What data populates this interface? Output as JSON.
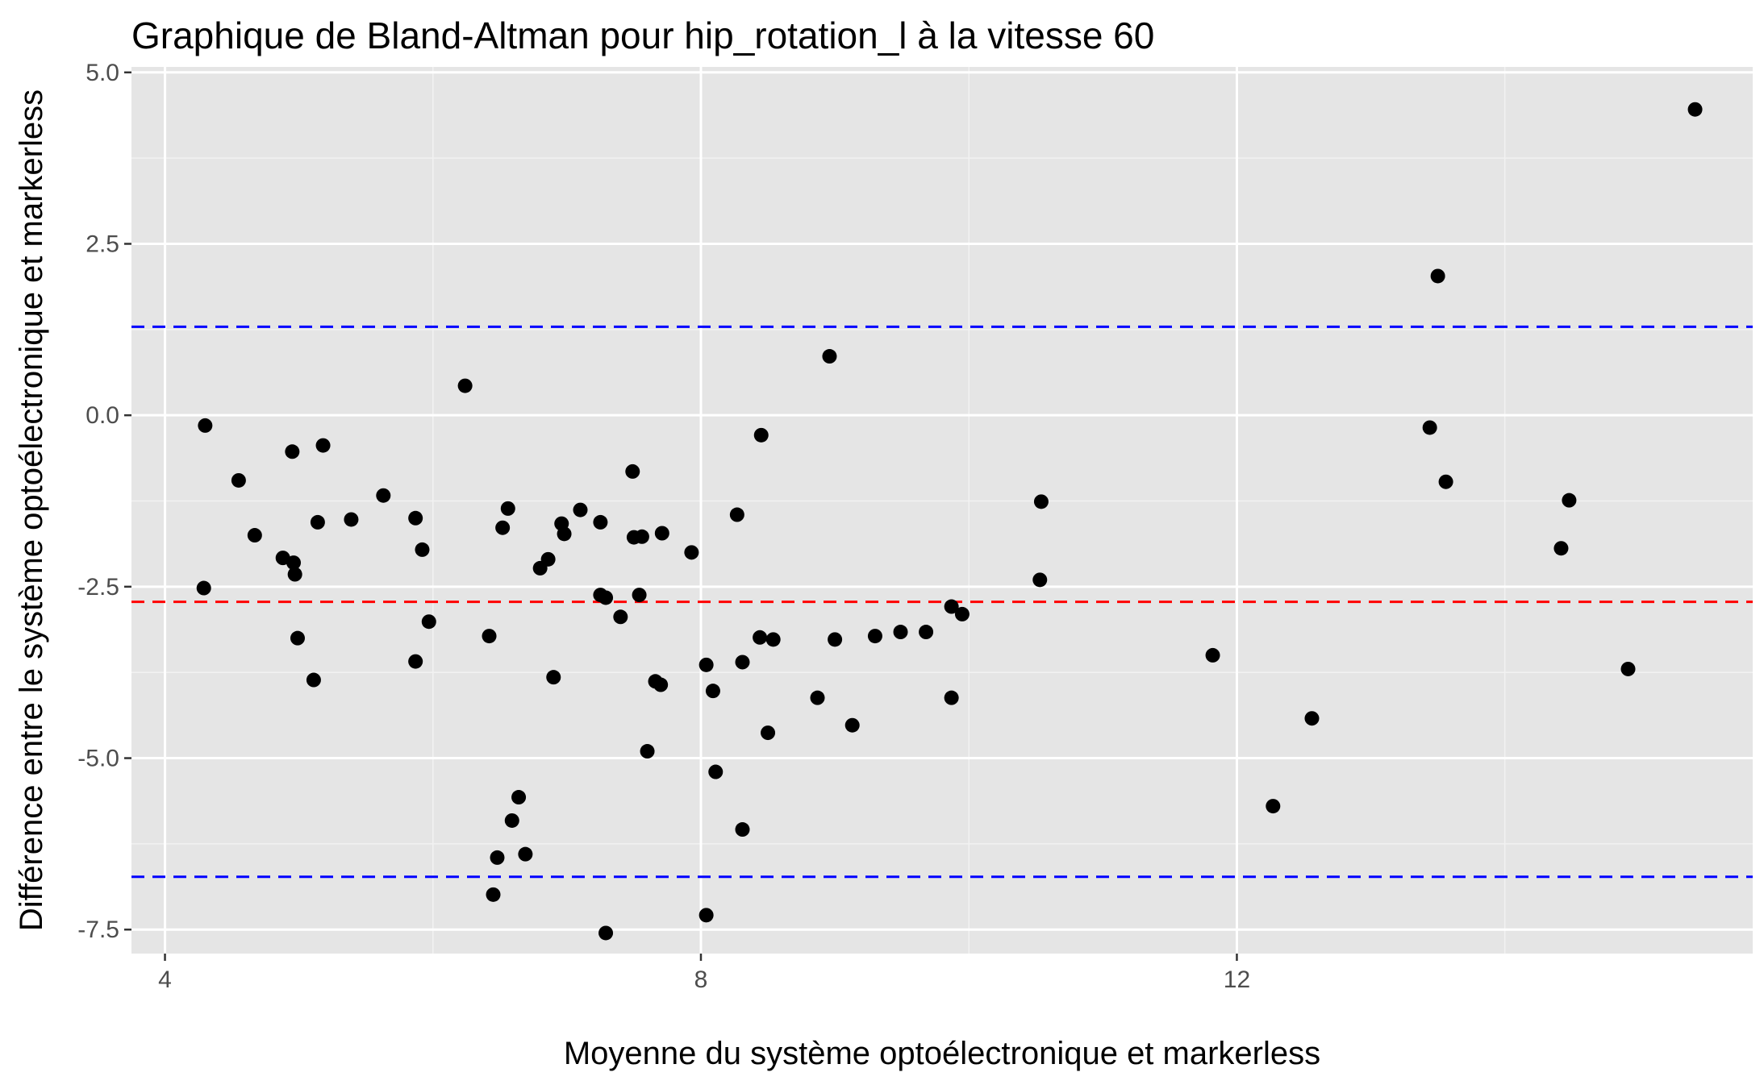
{
  "chart_data": {
    "type": "scatter",
    "title": "Graphique de Bland-Altman pour hip_rotation_l à la vitesse 60",
    "xlabel": "Moyenne du système optoélectronique et markerless",
    "ylabel": "Différence entre le système optoélectronique et markerless",
    "xlim": [
      3.75,
      15.85
    ],
    "ylim": [
      -7.85,
      5.08
    ],
    "x_ticks": [
      4,
      8,
      12
    ],
    "x_tick_labels": [
      "4",
      "8",
      "12"
    ],
    "y_ticks": [
      5.0,
      2.5,
      0.0,
      -2.5,
      -5.0,
      -7.5
    ],
    "y_tick_labels": [
      "5.0",
      "2.5",
      "0.0",
      "-2.5",
      "-5.0",
      "-7.5"
    ],
    "grid": true,
    "reference_lines": [
      {
        "y": -2.72,
        "color": "#ff0000",
        "style": "dashed"
      },
      {
        "y": 1.29,
        "color": "#0000ff",
        "style": "dashed"
      },
      {
        "y": -6.73,
        "color": "#0000ff",
        "style": "dashed"
      }
    ],
    "points": [
      {
        "x": 4.3,
        "y": -0.15
      },
      {
        "x": 4.29,
        "y": -2.52
      },
      {
        "x": 4.55,
        "y": -0.95
      },
      {
        "x": 4.67,
        "y": -1.75
      },
      {
        "x": 4.88,
        "y": -2.08
      },
      {
        "x": 4.95,
        "y": -0.53
      },
      {
        "x": 4.96,
        "y": -2.15
      },
      {
        "x": 4.97,
        "y": -2.32
      },
      {
        "x": 4.99,
        "y": -3.25
      },
      {
        "x": 5.11,
        "y": -3.86
      },
      {
        "x": 5.14,
        "y": -1.56
      },
      {
        "x": 5.18,
        "y": -0.44
      },
      {
        "x": 5.39,
        "y": -1.52
      },
      {
        "x": 5.63,
        "y": -1.17
      },
      {
        "x": 5.87,
        "y": -3.59
      },
      {
        "x": 5.87,
        "y": -1.5
      },
      {
        "x": 5.92,
        "y": -1.96
      },
      {
        "x": 5.97,
        "y": -3.01
      },
      {
        "x": 6.24,
        "y": 0.43
      },
      {
        "x": 6.42,
        "y": -3.22
      },
      {
        "x": 6.45,
        "y": -6.99
      },
      {
        "x": 6.48,
        "y": -6.45
      },
      {
        "x": 6.52,
        "y": -1.64
      },
      {
        "x": 6.56,
        "y": -1.36
      },
      {
        "x": 6.59,
        "y": -5.91
      },
      {
        "x": 6.64,
        "y": -5.57
      },
      {
        "x": 6.69,
        "y": -6.4
      },
      {
        "x": 6.8,
        "y": -2.23
      },
      {
        "x": 6.86,
        "y": -2.1
      },
      {
        "x": 6.9,
        "y": -3.82
      },
      {
        "x": 6.96,
        "y": -1.58
      },
      {
        "x": 6.98,
        "y": -1.73
      },
      {
        "x": 7.1,
        "y": -1.38
      },
      {
        "x": 7.25,
        "y": -1.56
      },
      {
        "x": 7.25,
        "y": -2.62
      },
      {
        "x": 7.29,
        "y": -2.66
      },
      {
        "x": 7.29,
        "y": -7.55
      },
      {
        "x": 7.4,
        "y": -2.94
      },
      {
        "x": 7.49,
        "y": -0.82
      },
      {
        "x": 7.5,
        "y": -1.78
      },
      {
        "x": 7.54,
        "y": -2.62
      },
      {
        "x": 7.56,
        "y": -1.77
      },
      {
        "x": 7.6,
        "y": -4.9
      },
      {
        "x": 7.66,
        "y": -3.88
      },
      {
        "x": 7.7,
        "y": -3.93
      },
      {
        "x": 7.71,
        "y": -1.72
      },
      {
        "x": 7.93,
        "y": -2.0
      },
      {
        "x": 8.04,
        "y": -3.64
      },
      {
        "x": 8.04,
        "y": -7.29
      },
      {
        "x": 8.09,
        "y": -4.02
      },
      {
        "x": 8.11,
        "y": -5.2
      },
      {
        "x": 8.27,
        "y": -1.45
      },
      {
        "x": 8.31,
        "y": -3.6
      },
      {
        "x": 8.31,
        "y": -6.04
      },
      {
        "x": 8.44,
        "y": -3.24
      },
      {
        "x": 8.45,
        "y": -0.29
      },
      {
        "x": 8.5,
        "y": -4.63
      },
      {
        "x": 8.54,
        "y": -3.27
      },
      {
        "x": 8.87,
        "y": -4.12
      },
      {
        "x": 8.96,
        "y": 0.86
      },
      {
        "x": 9.0,
        "y": -3.27
      },
      {
        "x": 9.13,
        "y": -4.52
      },
      {
        "x": 9.3,
        "y": -3.22
      },
      {
        "x": 9.49,
        "y": -3.16
      },
      {
        "x": 9.68,
        "y": -3.16
      },
      {
        "x": 9.87,
        "y": -2.79
      },
      {
        "x": 9.87,
        "y": -4.12
      },
      {
        "x": 9.95,
        "y": -2.9
      },
      {
        "x": 10.54,
        "y": -1.26
      },
      {
        "x": 10.53,
        "y": -2.4
      },
      {
        "x": 11.82,
        "y": -3.5
      },
      {
        "x": 12.27,
        "y": -5.7
      },
      {
        "x": 12.56,
        "y": -4.42
      },
      {
        "x": 13.44,
        "y": -0.18
      },
      {
        "x": 13.5,
        "y": 2.03
      },
      {
        "x": 13.56,
        "y": -0.97
      },
      {
        "x": 14.42,
        "y": -1.94
      },
      {
        "x": 14.48,
        "y": -1.24
      },
      {
        "x": 14.92,
        "y": -3.7
      },
      {
        "x": 15.42,
        "y": 4.46
      }
    ]
  }
}
